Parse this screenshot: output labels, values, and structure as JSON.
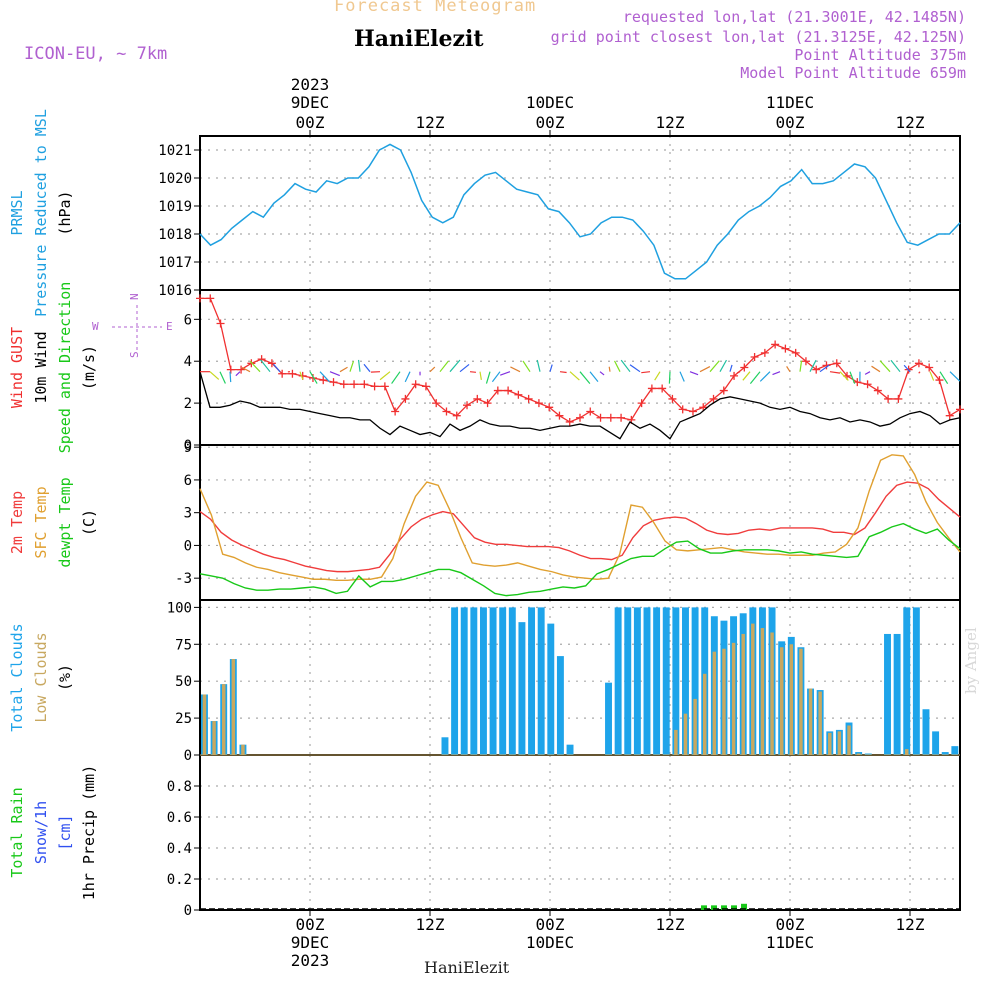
{
  "header": {
    "title": "Forecast Meteogram",
    "place": "HaniElezit",
    "model": "ICON-EU, ~ 7km",
    "requested": "requested lon,lat (21.3001E, 42.1485N)",
    "gridpoint": "grid point closest lon,lat (21.3125E, 42.125N)",
    "point_alt": "Point Altitude 375m",
    "model_alt": "Model Point Altitude 659m",
    "footer_place": "HaniElezit",
    "credit": "by Angel"
  },
  "colors": {
    "pressure": "#1fa0e0",
    "gust": "#f03030",
    "wind": "#000000",
    "t2m": "#f03c3c",
    "sfc": "#e0a030",
    "dewpt": "#18c818",
    "total_cloud": "#1ea4ea",
    "low_cloud": "#c8a860",
    "rain": "#18c818",
    "snow": "#3050f0",
    "title": "#f0c890",
    "purple": "#b060d0"
  },
  "chart_data": [
    {
      "type": "line",
      "title": "Forecast Meteogram",
      "ylabel_lines": [
        "PRMSL",
        "Pressure Reduced to MSL",
        "(hPa)"
      ],
      "ylim": [
        1016,
        1021.5
      ],
      "yticks": [
        1016,
        1017,
        1018,
        1019,
        1020,
        1021
      ],
      "grid": true,
      "x_hours": [
        0,
        1,
        2,
        3,
        4,
        5,
        6,
        7,
        8,
        9,
        10,
        11,
        12,
        13,
        14,
        15,
        16,
        17,
        18,
        19,
        20,
        21,
        22,
        23,
        24,
        25,
        26,
        27,
        28,
        29,
        30,
        31,
        32,
        33,
        34,
        35,
        36,
        37,
        38,
        39,
        40,
        41,
        42,
        43,
        44,
        45,
        46,
        47,
        48,
        49,
        50,
        51,
        52,
        53,
        54,
        55,
        56,
        57,
        58,
        59,
        60,
        61,
        62,
        63,
        64,
        65,
        66,
        67,
        68,
        69,
        70,
        71,
        72,
        73,
        74,
        75,
        76
      ],
      "series": [
        {
          "name": "PRMSL",
          "values": [
            1018.0,
            1017.6,
            1017.8,
            1018.2,
            1018.5,
            1018.8,
            1018.6,
            1019.1,
            1019.4,
            1019.8,
            1019.6,
            1019.5,
            1019.9,
            1019.8,
            1020.0,
            1020.0,
            1020.4,
            1021.0,
            1021.2,
            1021.0,
            1020.2,
            1019.2,
            1018.6,
            1018.4,
            1018.6,
            1019.4,
            1019.8,
            1020.1,
            1020.2,
            1019.9,
            1019.6,
            1019.5,
            1019.4,
            1018.9,
            1018.8,
            1018.4,
            1017.9,
            1018.0,
            1018.4,
            1018.6,
            1018.6,
            1018.5,
            1018.1,
            1017.6,
            1016.6,
            1016.4,
            1016.4,
            1016.7,
            1017.0,
            1017.6,
            1018.0,
            1018.5,
            1018.8,
            1019.0,
            1019.3,
            1019.7,
            1019.9,
            1020.3,
            1019.8,
            1019.8,
            1019.9,
            1020.2,
            1020.5,
            1020.4,
            1020.0,
            1019.2,
            1018.4,
            1017.7,
            1017.6,
            1017.8,
            1018.0,
            1018.0,
            1018.4
          ]
        }
      ]
    },
    {
      "type": "line",
      "ylabel_lines": [
        "Wind GUST",
        "10m Wind",
        "Speed and Direction",
        "(m/s)"
      ],
      "ylim": [
        0,
        7.4
      ],
      "yticks": [
        0,
        2,
        4,
        6
      ],
      "grid": true,
      "compass": {
        "w": "W",
        "e": "E",
        "n": "N",
        "s": "S"
      },
      "series": [
        {
          "name": "Wind GUST",
          "values": [
            7.0,
            7.0,
            5.8,
            3.6,
            3.6,
            3.9,
            4.1,
            3.9,
            3.4,
            3.4,
            3.3,
            3.2,
            3.1,
            3.0,
            2.9,
            2.9,
            2.9,
            2.8,
            2.8,
            1.6,
            2.2,
            2.9,
            2.8,
            2.0,
            1.6,
            1.4,
            1.9,
            2.2,
            2.0,
            2.6,
            2.6,
            2.4,
            2.2,
            2.0,
            1.8,
            1.4,
            1.1,
            1.3,
            1.6,
            1.3,
            1.3,
            1.3,
            1.2,
            2.0,
            2.7,
            2.7,
            2.2,
            1.7,
            1.6,
            1.8,
            2.2,
            2.6,
            3.3,
            3.7,
            4.2,
            4.4,
            4.8,
            4.6,
            4.4,
            4.0,
            3.6,
            3.8,
            3.9,
            3.3,
            3.0,
            2.9,
            2.6,
            2.2,
            2.2,
            3.6,
            3.9,
            3.7,
            3.1,
            1.4,
            1.7
          ]
        },
        {
          "name": "10m Wind",
          "values": [
            3.5,
            1.8,
            1.8,
            1.9,
            2.1,
            2.0,
            1.8,
            1.8,
            1.8,
            1.7,
            1.7,
            1.6,
            1.5,
            1.4,
            1.3,
            1.3,
            1.2,
            1.2,
            0.8,
            0.5,
            0.9,
            0.7,
            0.5,
            0.6,
            0.4,
            1.0,
            0.7,
            0.9,
            1.2,
            1.0,
            0.9,
            0.9,
            0.8,
            0.8,
            0.7,
            0.8,
            0.9,
            0.9,
            1.0,
            0.9,
            0.9,
            0.6,
            0.3,
            1.1,
            0.8,
            1.0,
            0.7,
            0.3,
            1.1,
            1.3,
            1.5,
            1.9,
            2.2,
            2.3,
            2.2,
            2.1,
            2.0,
            1.8,
            1.7,
            1.8,
            1.6,
            1.5,
            1.3,
            1.2,
            1.3,
            1.1,
            1.2,
            1.1,
            0.9,
            1.0,
            1.3,
            1.5,
            1.6,
            1.4,
            1.0,
            1.2,
            1.3
          ]
        }
      ]
    },
    {
      "type": "line",
      "ylabel_lines": [
        "2m Temp",
        "SFC Temp",
        "dewpt Temp",
        "(C)"
      ],
      "ylim": [
        -5,
        9.2
      ],
      "yticks": [
        -3,
        0,
        3,
        6,
        9
      ],
      "grid": true,
      "series": [
        {
          "name": "2m Temp",
          "values": [
            3.1,
            2.4,
            1.2,
            0.5,
            0.0,
            -0.4,
            -0.8,
            -1.1,
            -1.3,
            -1.6,
            -1.9,
            -2.1,
            -2.3,
            -2.4,
            -2.4,
            -2.3,
            -2.2,
            -2.0,
            -0.8,
            0.6,
            1.7,
            2.4,
            2.8,
            3.1,
            2.9,
            1.8,
            0.7,
            0.3,
            0.1,
            0.1,
            0.0,
            -0.1,
            -0.1,
            -0.1,
            -0.2,
            -0.5,
            -0.9,
            -1.2,
            -1.2,
            -1.3,
            -0.9,
            0.7,
            1.8,
            2.3,
            2.5,
            2.6,
            2.5,
            2.0,
            1.4,
            1.1,
            1.0,
            1.1,
            1.4,
            1.5,
            1.4,
            1.6,
            1.6,
            1.6,
            1.6,
            1.5,
            1.2,
            1.2,
            1.0,
            1.6,
            3.0,
            4.5,
            5.5,
            5.8,
            5.7,
            5.2,
            4.2,
            3.4,
            2.6
          ]
        },
        {
          "name": "SFC Temp",
          "values": [
            5.2,
            2.8,
            -0.8,
            -1.1,
            -1.6,
            -2.0,
            -2.2,
            -2.5,
            -2.7,
            -2.9,
            -3.1,
            -3.1,
            -3.2,
            -3.2,
            -3.1,
            -3.1,
            -2.9,
            -1.2,
            2.0,
            4.5,
            5.8,
            5.5,
            3.3,
            0.7,
            -1.6,
            -1.8,
            -1.9,
            -1.8,
            -1.6,
            -1.9,
            -2.2,
            -2.4,
            -2.7,
            -2.9,
            -3.0,
            -3.1,
            -3.0,
            -0.8,
            3.7,
            3.5,
            2.1,
            0.4,
            -0.4,
            -0.5,
            -0.4,
            -0.3,
            -0.2,
            -0.4,
            -0.6,
            -0.7,
            -0.8,
            -0.8,
            -0.9,
            -0.9,
            -0.9,
            -0.7,
            -0.6,
            0.1,
            1.6,
            5.0,
            7.8,
            8.3,
            8.2,
            6.5,
            4.0,
            2.1,
            0.7,
            -0.6
          ]
        },
        {
          "name": "dewpt Temp",
          "values": [
            -2.6,
            -2.8,
            -3.0,
            -3.5,
            -3.9,
            -4.1,
            -4.1,
            -4.0,
            -4.0,
            -3.9,
            -3.8,
            -4.0,
            -4.4,
            -4.2,
            -2.8,
            -3.8,
            -3.3,
            -3.3,
            -3.1,
            -2.8,
            -2.5,
            -2.2,
            -2.2,
            -2.5,
            -3.1,
            -3.7,
            -4.4,
            -4.6,
            -4.5,
            -4.3,
            -4.2,
            -4.0,
            -3.8,
            -3.9,
            -3.7,
            -2.6,
            -2.2,
            -1.7,
            -1.2,
            -1.0,
            -1.0,
            -0.3,
            0.3,
            0.4,
            -0.3,
            -0.7,
            -0.7,
            -0.5,
            -0.4,
            -0.4,
            -0.4,
            -0.5,
            -0.7,
            -0.6,
            -0.8,
            -0.9,
            -1.0,
            -1.1,
            -1.0,
            0.8,
            1.2,
            1.7,
            2.0,
            1.5,
            1.1,
            1.5,
            0.5,
            -0.3
          ]
        }
      ]
    },
    {
      "type": "bar",
      "ylabel_lines": [
        "Total Clouds",
        "Low Clouds",
        "(%)"
      ],
      "ylim": [
        0,
        105
      ],
      "yticks": [
        0,
        25,
        50,
        75,
        100
      ],
      "grid": true,
      "series": [
        {
          "name": "Total Clouds",
          "values": [
            41,
            23,
            48,
            65,
            7,
            0,
            0,
            0,
            0,
            0,
            0,
            0,
            0,
            0,
            0,
            0,
            0,
            0,
            0,
            0,
            0,
            0,
            0,
            0,
            0,
            12,
            100,
            100,
            100,
            100,
            100,
            100,
            100,
            90,
            100,
            100,
            89,
            67,
            7,
            0,
            0,
            0,
            49,
            100,
            100,
            100,
            100,
            100,
            100,
            100,
            100,
            100,
            100,
            94,
            91,
            94,
            96,
            100,
            100,
            100,
            77,
            80,
            73,
            45,
            44,
            16,
            17,
            22,
            2,
            1,
            0,
            82,
            82,
            100,
            100,
            31,
            16,
            2,
            6
          ]
        },
        {
          "name": "Low Clouds",
          "values": [
            41,
            23,
            48,
            65,
            7,
            0,
            0,
            0,
            0,
            0,
            0,
            0,
            0,
            0,
            0,
            0,
            0,
            0,
            0,
            0,
            0,
            0,
            0,
            0,
            0,
            0,
            0,
            0,
            0,
            0,
            0,
            0,
            0,
            0,
            0,
            0,
            0,
            0,
            0,
            0,
            0,
            0,
            0,
            0,
            0,
            0,
            0,
            0,
            0,
            17,
            28,
            38,
            55,
            70,
            72,
            76,
            82,
            89,
            86,
            83,
            73,
            75,
            72,
            45,
            43,
            15,
            16,
            20,
            1,
            0,
            0,
            0,
            0,
            4,
            0,
            0,
            0,
            0,
            0
          ]
        }
      ]
    },
    {
      "type": "bar",
      "ylabel_lines": [
        "Total  Rain",
        "Snow/1h",
        "[cm]",
        "1hr Precip (mm)"
      ],
      "ylim": [
        0,
        1.0
      ],
      "yticks": [
        "0",
        "0.2",
        "0.4",
        "0.6",
        "0.8"
      ],
      "grid": true,
      "series": [
        {
          "name": "Total Rain",
          "values": [
            0.03,
            0.03,
            0.03,
            0.03,
            0.04
          ]
        }
      ],
      "bar_hours": [
        50,
        51,
        52,
        53,
        54
      ]
    }
  ],
  "time_axis": {
    "top": [
      {
        "label": "2023",
        "h": 11
      },
      {
        "label": "9DEC",
        "h": 11
      },
      {
        "label": "00Z",
        "h": 11
      },
      {
        "label": "12Z",
        "h": 23
      },
      {
        "label": "10DEC",
        "h": 35
      },
      {
        "label": "00Z",
        "h": 35
      },
      {
        "label": "12Z",
        "h": 47
      },
      {
        "label": "11DEC",
        "h": 59
      },
      {
        "label": "00Z",
        "h": 59
      },
      {
        "label": "12Z",
        "h": 71
      }
    ],
    "bottom": [
      {
        "label": "00Z",
        "h": 11
      },
      {
        "label": "9DEC",
        "h": 11
      },
      {
        "label": "2023",
        "h": 11
      },
      {
        "label": "12Z",
        "h": 23
      },
      {
        "label": "00Z",
        "h": 35
      },
      {
        "label": "10DEC",
        "h": 35
      },
      {
        "label": "12Z",
        "h": 47
      },
      {
        "label": "00Z",
        "h": 59
      },
      {
        "label": "11DEC",
        "h": 59
      },
      {
        "label": "12Z",
        "h": 71
      }
    ]
  }
}
